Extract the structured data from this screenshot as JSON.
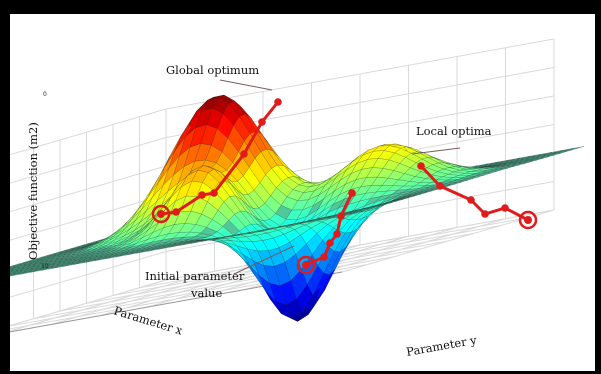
{
  "axes": {
    "z_label": "Objective function (m2)",
    "x_label": "Parameter x",
    "y_label": "Parameter y",
    "z_ticks": [
      "0",
      "10"
    ]
  },
  "annotations": {
    "global": "Global optimum",
    "local": "Local optima",
    "initial_line1": "Initial parameter",
    "initial_line2": "value"
  },
  "colors": {
    "path": "#e01b1b",
    "plane": "#4fc89a",
    "callout": "#7a5a5a"
  },
  "paths": [
    {
      "name": "to-global",
      "start": "initial",
      "end": "global"
    },
    {
      "name": "to-local-1",
      "start": "initial",
      "end": "local"
    },
    {
      "name": "to-local-2",
      "start": "initial",
      "end": "local"
    }
  ]
}
